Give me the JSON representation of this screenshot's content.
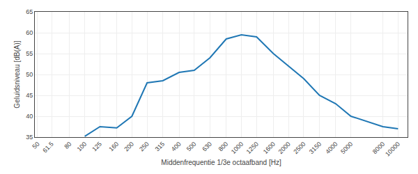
{
  "chart_data": {
    "type": "line",
    "xlabel": "Middenfrequentie 1/3e octaafband [Hz]",
    "ylabel": "Geluidsniveau [dB(A)]",
    "x": [
      50,
      61.5,
      80,
      100,
      125,
      160,
      200,
      250,
      315,
      400,
      500,
      630,
      800,
      1000,
      1250,
      1600,
      2000,
      2500,
      3150,
      4000,
      5000,
      8000,
      10000
    ],
    "values": [
      null,
      null,
      null,
      35.2,
      37.5,
      37.2,
      40.0,
      48.0,
      48.5,
      50.5,
      51.0,
      54.0,
      58.5,
      59.5,
      59.0,
      55.0,
      52.0,
      49.0,
      45.0,
      43.0,
      40.0,
      37.5,
      37.0
    ],
    "log": "x",
    "xlim": [
      48,
      11500
    ],
    "xticks": [
      50,
      61.5,
      80,
      100,
      125,
      160,
      200,
      250,
      315,
      400,
      500,
      630,
      800,
      1000,
      1250,
      1600,
      2000,
      2500,
      3150,
      4000,
      5000,
      8000,
      10000
    ],
    "ylim": [
      35,
      65
    ],
    "yticks": [
      35,
      40,
      45,
      50,
      55,
      60,
      65
    ],
    "grid": true
  }
}
